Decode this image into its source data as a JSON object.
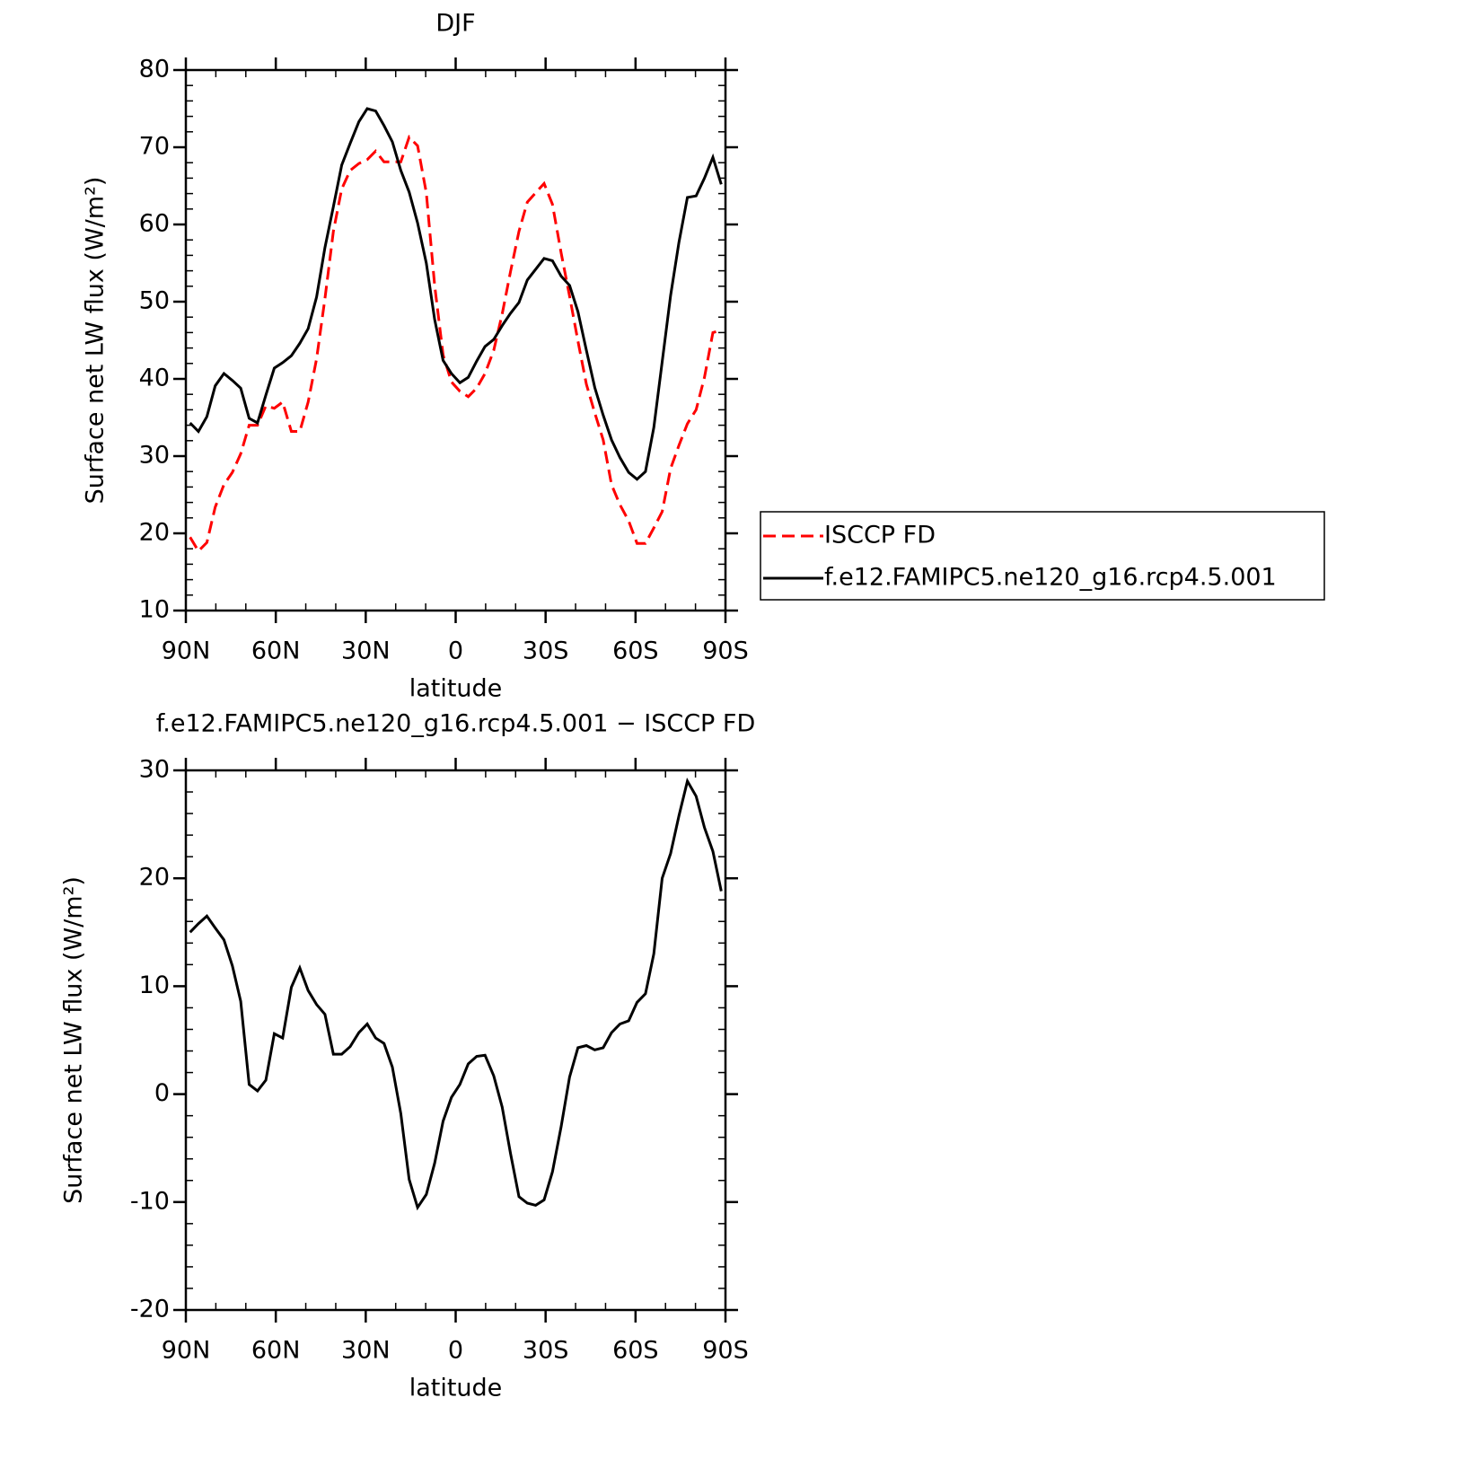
{
  "chart_data": [
    {
      "type": "line",
      "title": "DJF",
      "xlabel": "latitude",
      "ylabel": "Surface net LW flux (W/m²)",
      "x": [
        88.6,
        85.8,
        83.0,
        80.2,
        77.3,
        74.5,
        71.7,
        68.9,
        66.1,
        63.3,
        60.5,
        57.7,
        54.8,
        52.0,
        49.2,
        46.4,
        43.6,
        40.8,
        38.0,
        35.2,
        32.3,
        29.5,
        26.7,
        23.9,
        21.1,
        18.3,
        15.5,
        12.7,
        9.8,
        7.0,
        4.2,
        1.4,
        -1.4,
        -4.2,
        -7.0,
        -9.8,
        -12.7,
        -15.5,
        -18.3,
        -21.1,
        -23.9,
        -26.7,
        -29.5,
        -32.3,
        -35.2,
        -38.0,
        -40.8,
        -43.6,
        -46.4,
        -49.2,
        -52.0,
        -54.8,
        -57.7,
        -60.5,
        -63.3,
        -66.1,
        -68.9,
        -71.7,
        -74.5,
        -77.3,
        -80.2,
        -83.0,
        -85.8,
        -88.6
      ],
      "series": [
        {
          "name": "ISCCP FD",
          "color": "#ff0000",
          "linestyle": "dashed",
          "values": [
            19.5,
            17.7,
            18.8,
            23.4,
            26.3,
            27.9,
            30.3,
            34.0,
            34.0,
            36.5,
            36.2,
            37.0,
            33.2,
            33.2,
            37.0,
            42.6,
            50.4,
            59.1,
            64.6,
            67.0,
            67.9,
            68.4,
            69.5,
            68.1,
            68.1,
            68.1,
            71.3,
            70.2,
            64.1,
            52.1,
            43.1,
            39.6,
            38.4,
            37.7,
            38.8,
            40.7,
            43.7,
            48.4,
            53.9,
            59.1,
            62.9,
            64.1,
            65.3,
            62.6,
            56.3,
            50.7,
            44.9,
            39.3,
            35.6,
            32.1,
            26.3,
            23.7,
            21.6,
            18.7,
            18.7,
            20.7,
            22.8,
            28.4,
            31.4,
            34.2,
            36.0,
            40.2,
            46.0,
            46.3
          ]
        },
        {
          "name": "f.e12.FAMIPC5.ne120_g16.rcp4.5.001",
          "color": "#000000",
          "linestyle": "solid",
          "values": [
            34.3,
            33.2,
            35.1,
            39.1,
            40.7,
            39.8,
            38.8,
            34.9,
            34.3,
            37.9,
            41.4,
            42.1,
            43.0,
            44.6,
            46.5,
            50.6,
            57.0,
            62.3,
            67.7,
            70.5,
            73.3,
            75.0,
            74.7,
            72.8,
            70.7,
            67.0,
            64.2,
            60.2,
            55.0,
            47.7,
            42.4,
            40.7,
            39.5,
            40.2,
            42.3,
            44.2,
            45.1,
            46.9,
            48.5,
            49.9,
            52.8,
            54.2,
            55.6,
            55.3,
            53.3,
            52.1,
            48.7,
            43.7,
            38.9,
            35.3,
            32.1,
            29.8,
            27.9,
            27.0,
            28.0,
            33.7,
            42.2,
            50.8,
            57.7,
            63.5,
            63.7,
            66.0,
            68.7,
            65.2
          ]
        }
      ],
      "xlim": [
        90,
        -90
      ],
      "xticks": [
        {
          "value": 90,
          "label": "90N"
        },
        {
          "value": 60,
          "label": "60N"
        },
        {
          "value": 30,
          "label": "30N"
        },
        0,
        {
          "value": -30,
          "label": "30S"
        },
        {
          "value": -60,
          "label": "60S"
        },
        {
          "value": -90,
          "label": "90S"
        }
      ],
      "ylim": [
        10,
        80
      ],
      "yticks": [
        10,
        20,
        30,
        40,
        50,
        60,
        70,
        80
      ],
      "legend": "right"
    },
    {
      "type": "line",
      "title": "f.e12.FAMIPC5.ne120_g16.rcp4.5.001 − ISCCP FD",
      "xlabel": "latitude",
      "ylabel": "Surface net LW flux (W/m²)",
      "x": [
        88.6,
        85.8,
        83.0,
        80.2,
        77.3,
        74.5,
        71.7,
        68.9,
        66.1,
        63.3,
        60.5,
        57.7,
        54.8,
        52.0,
        49.2,
        46.4,
        43.6,
        40.8,
        38.0,
        35.2,
        32.3,
        29.5,
        26.7,
        23.9,
        21.1,
        18.3,
        15.5,
        12.7,
        9.8,
        7.0,
        4.2,
        1.4,
        -1.4,
        -4.2,
        -7.0,
        -9.8,
        -12.7,
        -15.5,
        -18.3,
        -21.1,
        -23.9,
        -26.7,
        -29.5,
        -32.3,
        -35.2,
        -38.0,
        -40.8,
        -43.6,
        -46.4,
        -49.2,
        -52.0,
        -54.8,
        -57.7,
        -60.5,
        -63.3,
        -66.1,
        -68.9,
        -71.7,
        -74.5,
        -77.3,
        -80.2,
        -83.0,
        -85.8,
        -88.6
      ],
      "series": [
        {
          "color": "#000000",
          "linestyle": "solid",
          "values": [
            15.0,
            15.8,
            16.5,
            15.4,
            14.3,
            11.9,
            8.6,
            0.9,
            0.3,
            1.3,
            5.6,
            5.2,
            9.9,
            11.7,
            9.6,
            8.3,
            7.4,
            3.7,
            3.7,
            4.4,
            5.7,
            6.5,
            5.2,
            4.7,
            2.5,
            -1.8,
            -7.9,
            -10.5,
            -9.3,
            -6.4,
            -2.5,
            -0.3,
            0.9,
            2.8,
            3.5,
            3.6,
            1.7,
            -1.2,
            -5.5,
            -9.5,
            -10.1,
            -10.3,
            -9.8,
            -7.2,
            -3.0,
            1.6,
            4.3,
            4.5,
            4.1,
            4.3,
            5.7,
            6.5,
            6.8,
            8.5,
            9.3,
            13.0,
            20.0,
            22.3,
            25.8,
            29.0,
            27.6,
            24.7,
            22.5,
            18.8
          ]
        }
      ],
      "xlim": [
        90,
        -90
      ],
      "xticks": [
        {
          "value": 90,
          "label": "90N"
        },
        {
          "value": 60,
          "label": "60N"
        },
        {
          "value": 30,
          "label": "30N"
        },
        0,
        {
          "value": -30,
          "label": "30S"
        },
        {
          "value": -60,
          "label": "60S"
        },
        {
          "value": -90,
          "label": "90S"
        }
      ],
      "ylim": [
        -20,
        30
      ],
      "yticks": [
        -20,
        -10,
        0,
        10,
        20,
        30
      ]
    }
  ]
}
